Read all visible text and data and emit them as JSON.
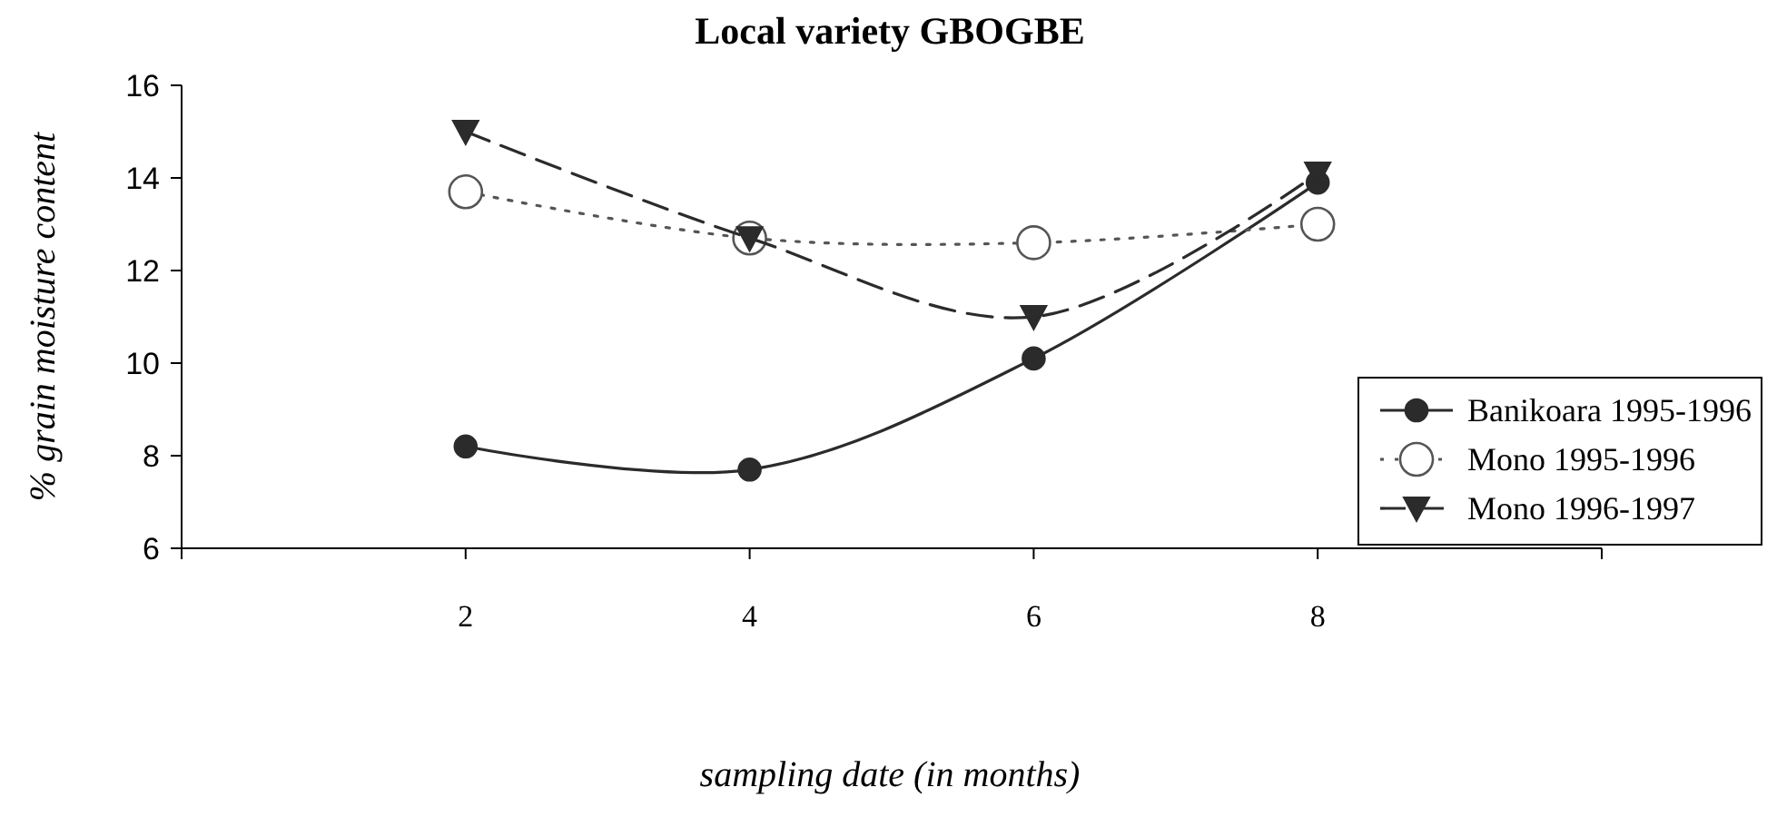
{
  "chart_data": {
    "type": "line",
    "title": "Local variety GBOGBE",
    "xlabel": "sampling date (in months)",
    "ylabel": "% grain moisture content",
    "x": [
      2,
      4,
      6,
      8
    ],
    "xlim": [
      0,
      10
    ],
    "xticks": [
      {
        "value": 0,
        "label": null
      },
      2,
      4,
      6,
      8,
      {
        "value": 10,
        "label": null
      }
    ],
    "ylim": [
      6,
      16
    ],
    "yticks": [
      6,
      8,
      10,
      12,
      14,
      16
    ],
    "grid": false,
    "legend": "right",
    "series": [
      {
        "name": "Banikoara 1995-1996",
        "color": "#2b2b2b",
        "values": [
          8.2,
          7.7,
          10.1,
          13.9
        ],
        "marker": "circle",
        "line_style": "solid"
      },
      {
        "name": "Mono 1995-1996",
        "color": "#555555",
        "values": [
          13.7,
          12.7,
          12.6,
          13.0
        ],
        "marker": "circle",
        "line_style": "dotted"
      },
      {
        "name": "Mono 1996-1997",
        "color": "#2b2b2b",
        "values": [
          15.0,
          12.7,
          11.0,
          14.1
        ],
        "marker": "triangle",
        "line_style": "dashed"
      }
    ]
  }
}
